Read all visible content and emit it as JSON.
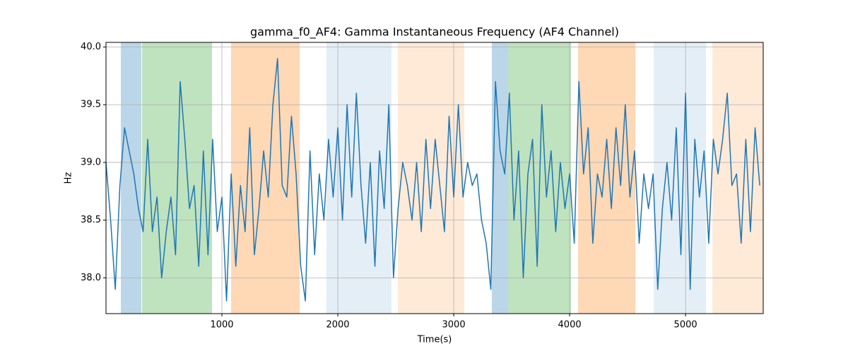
{
  "chart_data": {
    "type": "line",
    "title": "gamma_f0_AF4: Gamma Instantaneous Frequency (AF4 Channel)",
    "x_label": "Time(s)",
    "y_label": "Hz",
    "xlim": [
      0,
      5670
    ],
    "ylim": [
      37.69,
      40.04
    ],
    "xticks": [
      1000,
      2000,
      3000,
      4000,
      5000
    ],
    "yticks": [
      {
        "value": 38,
        "label": "38.0"
      },
      38.5,
      {
        "value": 39,
        "label": "39.0"
      },
      39.5,
      {
        "value": 40,
        "label": "40.0"
      }
    ],
    "grid": true,
    "spans": [
      {
        "start": 128,
        "end": 305,
        "color": "#1f77b4",
        "opacity": 0.3
      },
      {
        "start": 311,
        "end": 915,
        "color": "#2ca02c",
        "opacity": 0.3
      },
      {
        "start": 1079,
        "end": 1671,
        "color": "#ff7f0e",
        "opacity": 0.3
      },
      {
        "start": 1902,
        "end": 2463,
        "color": "#1f77b4",
        "opacity": 0.12
      },
      {
        "start": 2518,
        "end": 3091,
        "color": "#ff7f0e",
        "opacity": 0.16
      },
      {
        "start": 3329,
        "end": 3470,
        "color": "#1f77b4",
        "opacity": 0.3
      },
      {
        "start": 3470,
        "end": 4012,
        "color": "#2ca02c",
        "opacity": 0.3
      },
      {
        "start": 4073,
        "end": 4567,
        "color": "#ff7f0e",
        "opacity": 0.3
      },
      {
        "start": 4726,
        "end": 5177,
        "color": "#1f77b4",
        "opacity": 0.12
      },
      {
        "start": 5232,
        "end": 5677,
        "color": "#ff7f0e",
        "opacity": 0.16
      }
    ],
    "x": [
      0,
      40,
      80,
      120,
      160,
      200,
      240,
      280,
      320,
      360,
      400,
      440,
      480,
      520,
      560,
      600,
      640,
      680,
      720,
      760,
      800,
      840,
      880,
      920,
      960,
      1000,
      1040,
      1080,
      1120,
      1160,
      1200,
      1240,
      1280,
      1320,
      1360,
      1400,
      1440,
      1480,
      1520,
      1560,
      1600,
      1640,
      1680,
      1720,
      1760,
      1800,
      1840,
      1880,
      1920,
      1960,
      2000,
      2040,
      2080,
      2120,
      2160,
      2200,
      2240,
      2280,
      2320,
      2360,
      2400,
      2440,
      2480,
      2520,
      2560,
      2600,
      2640,
      2680,
      2720,
      2760,
      2800,
      2840,
      2880,
      2920,
      2960,
      3000,
      3040,
      3080,
      3120,
      3160,
      3200,
      3240,
      3280,
      3320,
      3360,
      3400,
      3440,
      3480,
      3520,
      3560,
      3600,
      3640,
      3680,
      3720,
      3760,
      3800,
      3840,
      3880,
      3920,
      3960,
      4000,
      4040,
      4080,
      4120,
      4160,
      4200,
      4240,
      4280,
      4320,
      4360,
      4400,
      4440,
      4480,
      4520,
      4560,
      4600,
      4640,
      4680,
      4720,
      4760,
      4800,
      4840,
      4880,
      4920,
      4960,
      5000,
      5040,
      5080,
      5120,
      5160,
      5200,
      5240,
      5280,
      5320,
      5360,
      5400,
      5440,
      5480,
      5520,
      5560,
      5600,
      5640
    ],
    "series": [
      {
        "color": "#1f77b4",
        "values": [
          39.0,
          38.5,
          37.9,
          38.8,
          39.3,
          39.1,
          38.9,
          38.6,
          38.4,
          39.2,
          38.4,
          38.7,
          38.0,
          38.4,
          38.7,
          38.2,
          39.7,
          39.2,
          38.6,
          38.8,
          38.1,
          39.1,
          38.2,
          39.2,
          38.4,
          38.7,
          37.8,
          38.9,
          38.1,
          38.8,
          38.4,
          39.3,
          38.2,
          38.6,
          39.1,
          38.7,
          39.5,
          39.9,
          38.8,
          38.7,
          39.4,
          38.9,
          38.1,
          37.8,
          39.1,
          38.2,
          38.9,
          38.5,
          39.2,
          38.7,
          39.3,
          38.5,
          39.5,
          38.7,
          39.6,
          38.8,
          38.3,
          39.0,
          38.1,
          39.1,
          38.6,
          39.5,
          38.0,
          38.6,
          39.0,
          38.8,
          38.5,
          39.0,
          38.4,
          39.2,
          38.6,
          39.2,
          38.8,
          38.4,
          39.4,
          38.7,
          39.5,
          38.7,
          39.0,
          38.8,
          38.9,
          38.5,
          38.3,
          37.9,
          39.7,
          39.1,
          38.9,
          39.6,
          38.5,
          39.1,
          38.0,
          38.9,
          39.2,
          38.1,
          39.5,
          38.7,
          39.1,
          38.4,
          39.0,
          38.6,
          38.9,
          38.3,
          39.7,
          38.9,
          39.3,
          38.3,
          38.9,
          38.7,
          39.2,
          38.6,
          39.3,
          38.8,
          39.5,
          38.7,
          39.1,
          38.3,
          38.9,
          38.6,
          38.9,
          37.9,
          38.6,
          39.0,
          38.5,
          39.3,
          38.2,
          39.6,
          37.9,
          39.2,
          38.7,
          39.1,
          38.3,
          39.2,
          38.9,
          39.2,
          39.6,
          38.8,
          38.9,
          38.3,
          39.2,
          38.4,
          39.3,
          38.8
        ]
      }
    ]
  }
}
